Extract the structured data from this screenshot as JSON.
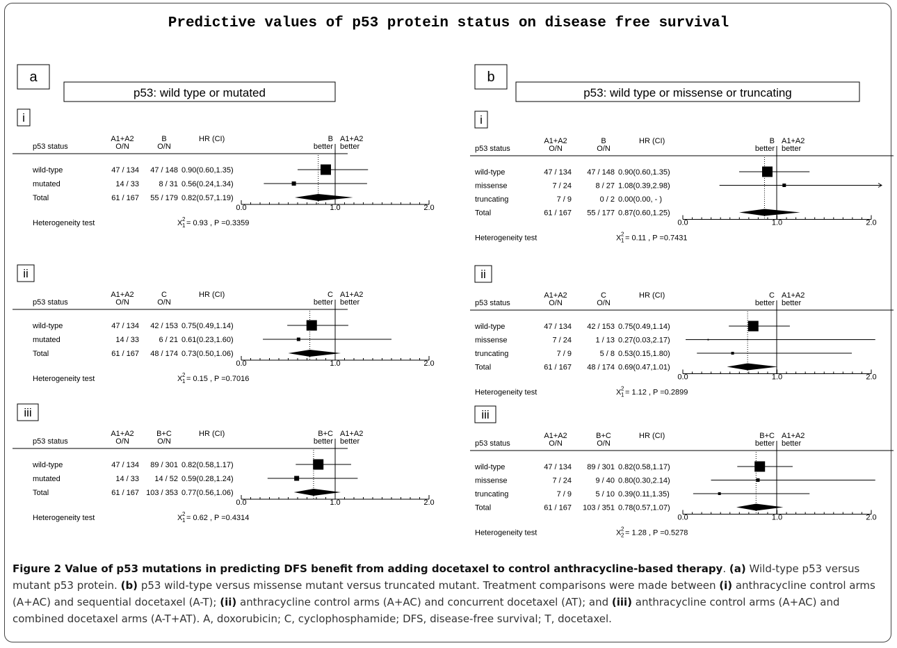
{
  "figure_title": "Predictive values of p53 protein status on disease free survival",
  "colors": {
    "ink": "#000000",
    "frame": "#444444",
    "caption_text": "#333333"
  },
  "panels": [
    {
      "id": "a",
      "letter": "a",
      "subtitle": "p53: wild type or mutated",
      "subpanels": [
        {
          "numeral": "i",
          "col_headers": {
            "status": "p53 status",
            "control_top": "A1+A2",
            "control_bottom": "O/N",
            "exp_top": "B",
            "exp_bottom": "O/N",
            "hr": "HR (CI)",
            "left_better_top": "B",
            "left_better_bottom": "better",
            "right_better_top": "A1+A2",
            "right_better_bottom": "better"
          },
          "rows": [
            {
              "label": "wild-type",
              "control": "47 / 134",
              "exp": "47 / 148",
              "hr_text": "0.90(0.60,1.35)",
              "hr": 0.9,
              "lo": 0.6,
              "hi": 1.35,
              "box": 15
            },
            {
              "label": "mutated",
              "control": "14 / 33",
              "exp": "8 / 31",
              "hr_text": "0.56(0.24,1.34)",
              "hr": 0.56,
              "lo": 0.24,
              "hi": 1.34,
              "box": 6
            }
          ],
          "total": {
            "label": "Total",
            "control": "61 / 167",
            "exp": "55 / 179",
            "hr_text": "0.82(0.57,1.19)",
            "hr": 0.82,
            "lo": 0.57,
            "hi": 1.19
          },
          "axis_ticks": [
            "0.0",
            "1.0",
            "2.0"
          ],
          "het_label": "Heterogeneity test",
          "het_chi": "X",
          "het_df": "1",
          "het_sq": "2",
          "het_value": "= 0.93 , P =0.3359"
        },
        {
          "numeral": "ii",
          "col_headers": {
            "status": "p53 status",
            "control_top": "A1+A2",
            "control_bottom": "O/N",
            "exp_top": "C",
            "exp_bottom": "O/N",
            "hr": "HR (CI)",
            "left_better_top": "C",
            "left_better_bottom": "better",
            "right_better_top": "A1+A2",
            "right_better_bottom": "better"
          },
          "rows": [
            {
              "label": "wild-type",
              "control": "47 / 134",
              "exp": "42 / 153",
              "hr_text": "0.75(0.49,1.14)",
              "hr": 0.75,
              "lo": 0.49,
              "hi": 1.14,
              "box": 15
            },
            {
              "label": "mutated",
              "control": "14 / 33",
              "exp": "6 / 21",
              "hr_text": "0.61(0.23,1.60)",
              "hr": 0.61,
              "lo": 0.23,
              "hi": 1.6,
              "box": 5
            }
          ],
          "total": {
            "label": "Total",
            "control": "61 / 167",
            "exp": "48 / 174",
            "hr_text": "0.73(0.50,1.06)",
            "hr": 0.73,
            "lo": 0.5,
            "hi": 1.06
          },
          "axis_ticks": [
            "0.0",
            "1.0",
            "2.0"
          ],
          "het_label": "Heterogeneity test",
          "het_chi": "X",
          "het_df": "1",
          "het_sq": "2",
          "het_value": "= 0.15 , P =0.7016"
        },
        {
          "numeral": "iii",
          "col_headers": {
            "status": "p53 status",
            "control_top": "A1+A2",
            "control_bottom": "O/N",
            "exp_top": "B+C",
            "exp_bottom": "O/N",
            "hr": "HR (CI)",
            "left_better_top": "B+C",
            "left_better_bottom": "better",
            "right_better_top": "A1+A2",
            "right_better_bottom": "better"
          },
          "rows": [
            {
              "label": "wild-type",
              "control": "47 / 134",
              "exp": "89 / 301",
              "hr_text": "0.82(0.58,1.17)",
              "hr": 0.82,
              "lo": 0.58,
              "hi": 1.17,
              "box": 15
            },
            {
              "label": "mutated",
              "control": "14 / 33",
              "exp": "14 / 52",
              "hr_text": "0.59(0.28,1.24)",
              "hr": 0.59,
              "lo": 0.28,
              "hi": 1.24,
              "box": 7
            }
          ],
          "total": {
            "label": "Total",
            "control": "61 / 167",
            "exp": "103 / 353",
            "hr_text": "0.77(0.56,1.06)",
            "hr": 0.77,
            "lo": 0.56,
            "hi": 1.06
          },
          "axis_ticks": [
            "0.0",
            "1.0",
            "2.0"
          ],
          "het_label": "Heterogeneity test",
          "het_chi": "X",
          "het_df": "1",
          "het_sq": "2",
          "het_value": "= 0.62 , P =0.4314"
        }
      ]
    },
    {
      "id": "b",
      "letter": "b",
      "subtitle": "p53: wild type or missense or truncating",
      "subpanels": [
        {
          "numeral": "i",
          "col_headers": {
            "status": "p53 status",
            "control_top": "A1+A2",
            "control_bottom": "O/N",
            "exp_top": "B",
            "exp_bottom": "O/N",
            "hr": "HR (CI)",
            "left_better_top": "B",
            "left_better_bottom": "better",
            "right_better_top": "A1+A2",
            "right_better_bottom": "better"
          },
          "rows": [
            {
              "label": "wild-type",
              "control": "47 / 134",
              "exp": "47 / 148",
              "hr_text": "0.90(0.60,1.35)",
              "hr": 0.9,
              "lo": 0.6,
              "hi": 1.35,
              "box": 15
            },
            {
              "label": "missense",
              "control": "7 / 24",
              "exp": "8 / 27",
              "hr_text": "1.08(0.39,2.98)",
              "hr": 1.08,
              "lo": 0.39,
              "hi": 2.98,
              "box": 5,
              "arrow": true
            },
            {
              "label": "truncating",
              "control": "7 / 9",
              "exp": "0 / 2",
              "hr_text": "0.00(0.00,  -  )",
              "hr": null,
              "lo": null,
              "hi": null,
              "box": 0
            }
          ],
          "total": {
            "label": "Total",
            "control": "61 / 167",
            "exp": "55 / 177",
            "hr_text": "0.87(0.60,1.25)",
            "hr": 0.87,
            "lo": 0.6,
            "hi": 1.25
          },
          "axis_ticks": [
            "0.0",
            "1.0",
            "2.0"
          ],
          "het_label": "Heterogeneity test",
          "het_chi": "X",
          "het_df": "1",
          "het_sq": "2",
          "het_value": "= 0.11 , P =0.7431"
        },
        {
          "numeral": "ii",
          "col_headers": {
            "status": "p53 status",
            "control_top": "A1+A2",
            "control_bottom": "O/N",
            "exp_top": "C",
            "exp_bottom": "O/N",
            "hr": "HR (CI)",
            "left_better_top": "C",
            "left_better_bottom": "better",
            "right_better_top": "A1+A2",
            "right_better_bottom": "better"
          },
          "rows": [
            {
              "label": "wild-type",
              "control": "47 / 134",
              "exp": "42 / 153",
              "hr_text": "0.75(0.49,1.14)",
              "hr": 0.75,
              "lo": 0.49,
              "hi": 1.14,
              "box": 15
            },
            {
              "label": "missense",
              "control": "7 / 24",
              "exp": "1 / 13",
              "hr_text": "0.27(0.03,2.17)",
              "hr": 0.27,
              "lo": 0.03,
              "hi": 2.17,
              "box": 2
            },
            {
              "label": "truncating",
              "control": "7 / 9",
              "exp": "5 / 8",
              "hr_text": "0.53(0.15,1.80)",
              "hr": 0.53,
              "lo": 0.15,
              "hi": 1.8,
              "box": 4
            }
          ],
          "total": {
            "label": "Total",
            "control": "61 / 167",
            "exp": "48 / 174",
            "hr_text": "0.69(0.47,1.01)",
            "hr": 0.69,
            "lo": 0.47,
            "hi": 1.01
          },
          "axis_ticks": [
            "0.0",
            "1.0",
            "2.0"
          ],
          "het_label": "Heterogeneity test",
          "het_chi": "X",
          "het_df": "1",
          "het_sq": "2",
          "het_value": "= 1.12 , P =0.2899"
        },
        {
          "numeral": "iii",
          "col_headers": {
            "status": "p53 status",
            "control_top": "A1+A2",
            "control_bottom": "O/N",
            "exp_top": "B+C",
            "exp_bottom": "O/N",
            "hr": "HR (CI)",
            "left_better_top": "B+C",
            "left_better_bottom": "better",
            "right_better_top": "A1+A2",
            "right_better_bottom": "better"
          },
          "rows": [
            {
              "label": "wild-type",
              "control": "47 / 134",
              "exp": "89 / 301",
              "hr_text": "0.82(0.58,1.17)",
              "hr": 0.82,
              "lo": 0.58,
              "hi": 1.17,
              "box": 15
            },
            {
              "label": "missense",
              "control": "7 / 24",
              "exp": "9 / 40",
              "hr_text": "0.80(0.30,2.14)",
              "hr": 0.8,
              "lo": 0.3,
              "hi": 2.14,
              "box": 5
            },
            {
              "label": "truncating",
              "control": "7 / 9",
              "exp": "5 / 10",
              "hr_text": "0.39(0.11,1.35)",
              "hr": 0.39,
              "lo": 0.11,
              "hi": 1.35,
              "box": 4
            }
          ],
          "total": {
            "label": "Total",
            "control": "61 / 167",
            "exp": "103 / 351",
            "hr_text": "0.78(0.57,1.07)",
            "hr": 0.78,
            "lo": 0.57,
            "hi": 1.07
          },
          "axis_ticks": [
            "0.0",
            "1.0",
            "2.0"
          ],
          "het_label": "Heterogeneity test",
          "het_chi": "X",
          "het_df": "2",
          "het_sq": "2",
          "het_value": "= 1.28 , P =0.5278"
        }
      ]
    }
  ],
  "caption": {
    "lead": "Figure 2 Value of p53 mutations in predicting DFS benefit from adding docetaxel to control anthracycline-based therapy",
    "parts": [
      {
        "bold": true,
        "text": "(a)"
      },
      {
        "bold": false,
        "text": " Wild-type p53 versus mutant p53 protein. "
      },
      {
        "bold": true,
        "text": "(b)"
      },
      {
        "bold": false,
        "text": " p53 wild-type versus missense mutant versus truncated mutant. Treatment comparisons were made between "
      },
      {
        "bold": true,
        "text": "(i)"
      },
      {
        "bold": false,
        "text": " anthracycline control arms (A+AC) and sequential docetaxel (A-T); "
      },
      {
        "bold": true,
        "text": "(ii)"
      },
      {
        "bold": false,
        "text": " anthracycline control arms (A+AC) and concurrent docetaxel (AT); and "
      },
      {
        "bold": true,
        "text": "(iii)"
      },
      {
        "bold": false,
        "text": " anthracycline control arms (A+AC) and combined docetaxel arms (A-T+AT). A, doxorubicin; C, cyclophosphamide; DFS, disease-free survival; T, docetaxel."
      }
    ]
  },
  "chart_data": [
    {
      "type": "forest",
      "title": "a(i)",
      "xlim": [
        0,
        2
      ],
      "reference": 1.0,
      "series": [
        {
          "category": "wild-type",
          "hr": 0.9,
          "lo": 0.6,
          "hi": 1.35
        },
        {
          "category": "mutated",
          "hr": 0.56,
          "lo": 0.24,
          "hi": 1.34
        },
        {
          "category": "Total",
          "hr": 0.82,
          "lo": 0.57,
          "hi": 1.19
        }
      ]
    },
    {
      "type": "forest",
      "title": "a(ii)",
      "xlim": [
        0,
        2
      ],
      "reference": 1.0,
      "series": [
        {
          "category": "wild-type",
          "hr": 0.75,
          "lo": 0.49,
          "hi": 1.14
        },
        {
          "category": "mutated",
          "hr": 0.61,
          "lo": 0.23,
          "hi": 1.6
        },
        {
          "category": "Total",
          "hr": 0.73,
          "lo": 0.5,
          "hi": 1.06
        }
      ]
    },
    {
      "type": "forest",
      "title": "a(iii)",
      "xlim": [
        0,
        2
      ],
      "reference": 1.0,
      "series": [
        {
          "category": "wild-type",
          "hr": 0.82,
          "lo": 0.58,
          "hi": 1.17
        },
        {
          "category": "mutated",
          "hr": 0.59,
          "lo": 0.28,
          "hi": 1.24
        },
        {
          "category": "Total",
          "hr": 0.77,
          "lo": 0.56,
          "hi": 1.06
        }
      ]
    },
    {
      "type": "forest",
      "title": "b(i)",
      "xlim": [
        0,
        2
      ],
      "reference": 1.0,
      "series": [
        {
          "category": "wild-type",
          "hr": 0.9,
          "lo": 0.6,
          "hi": 1.35
        },
        {
          "category": "missense",
          "hr": 1.08,
          "lo": 0.39,
          "hi": 2.98
        },
        {
          "category": "truncating",
          "hr": 0.0,
          "lo": 0.0,
          "hi": null
        },
        {
          "category": "Total",
          "hr": 0.87,
          "lo": 0.6,
          "hi": 1.25
        }
      ]
    },
    {
      "type": "forest",
      "title": "b(ii)",
      "xlim": [
        0,
        2
      ],
      "reference": 1.0,
      "series": [
        {
          "category": "wild-type",
          "hr": 0.75,
          "lo": 0.49,
          "hi": 1.14
        },
        {
          "category": "missense",
          "hr": 0.27,
          "lo": 0.03,
          "hi": 2.17
        },
        {
          "category": "truncating",
          "hr": 0.53,
          "lo": 0.15,
          "hi": 1.8
        },
        {
          "category": "Total",
          "hr": 0.69,
          "lo": 0.47,
          "hi": 1.01
        }
      ]
    },
    {
      "type": "forest",
      "title": "b(iii)",
      "xlim": [
        0,
        2
      ],
      "reference": 1.0,
      "series": [
        {
          "category": "wild-type",
          "hr": 0.82,
          "lo": 0.58,
          "hi": 1.17
        },
        {
          "category": "missense",
          "hr": 0.8,
          "lo": 0.3,
          "hi": 2.14
        },
        {
          "category": "truncating",
          "hr": 0.39,
          "lo": 0.11,
          "hi": 1.35
        },
        {
          "category": "Total",
          "hr": 0.78,
          "lo": 0.57,
          "hi": 1.07
        }
      ]
    }
  ]
}
